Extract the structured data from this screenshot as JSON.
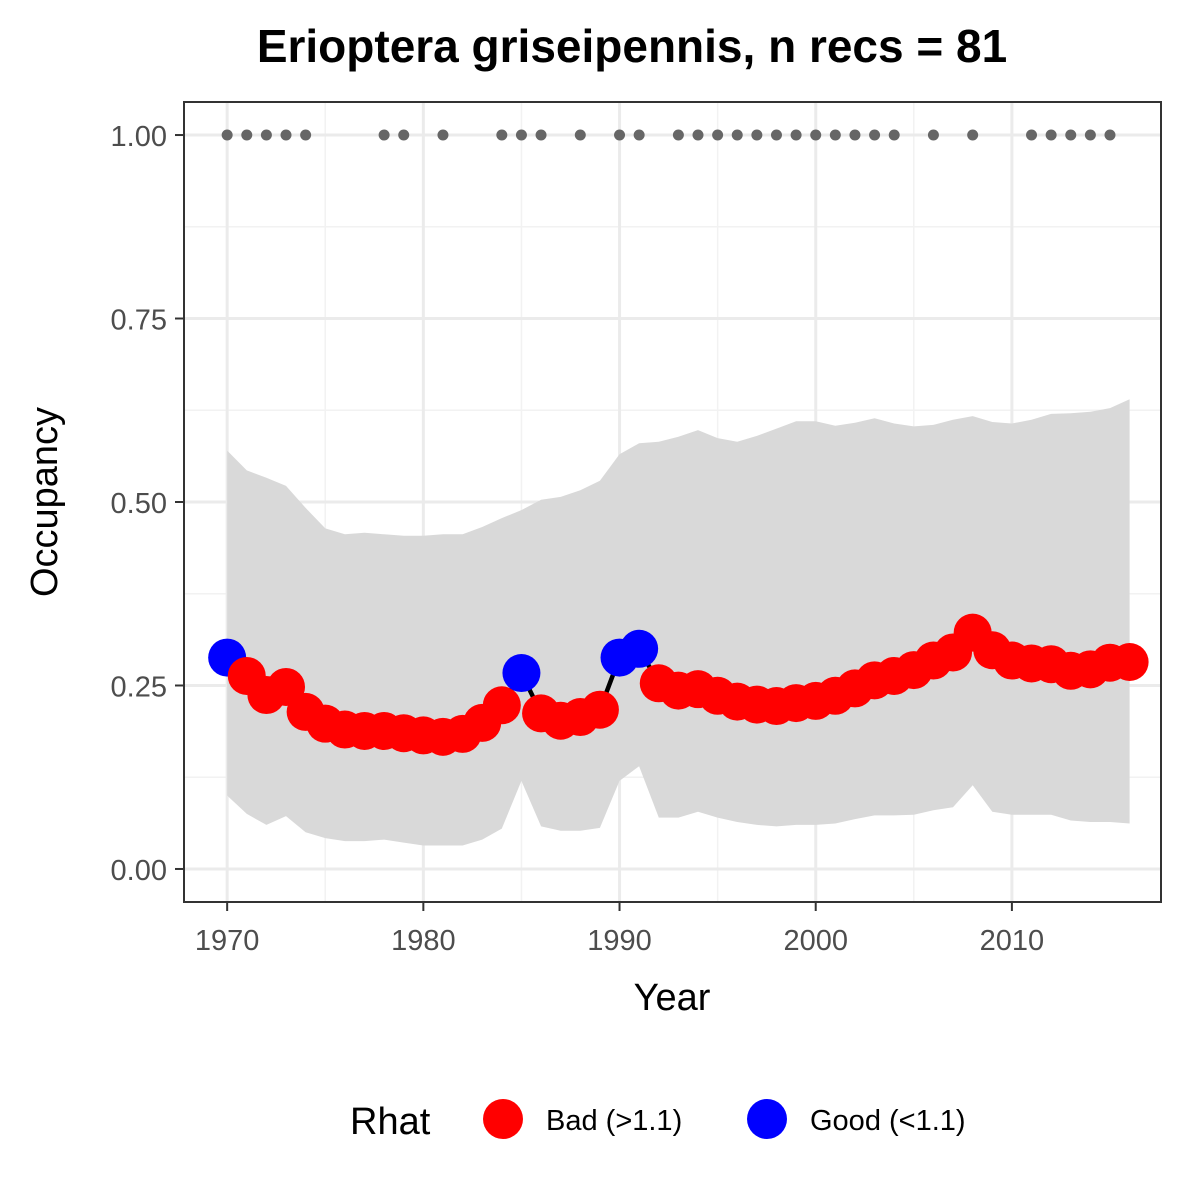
{
  "chart_data": {
    "type": "line",
    "title": "Erioptera griseipennis, n recs = 81",
    "xlabel": "Year",
    "ylabel": "Occupancy",
    "xlim": [
      1967.8,
      2017.6
    ],
    "ylim": [
      -0.045,
      1.045
    ],
    "x_ticks": [
      1970,
      1980,
      1990,
      2000,
      2010
    ],
    "x_tick_labels": [
      "1970",
      "1980",
      "1990",
      "2000",
      "2010"
    ],
    "y_ticks": [
      0,
      0.25,
      0.5,
      0.75,
      1.0
    ],
    "y_tick_labels": [
      "0.00",
      "0.25",
      "0.50",
      "0.75",
      "1.00"
    ],
    "grid": true,
    "legend_position": "bottom",
    "legend_title": "Rhat",
    "colors": {
      "bad": "#ff0000",
      "good": "#0000ff",
      "ribbon": "#d9d9d9",
      "line": "#000000",
      "records": "#666666"
    },
    "series": [
      {
        "years": [
          1970,
          1971,
          1972,
          1973,
          1974,
          1975,
          1976,
          1977,
          1978,
          1979,
          1980,
          1981,
          1982,
          1983,
          1984,
          1985,
          1986,
          1987,
          1988,
          1989,
          1990,
          1991,
          1992,
          1993,
          1994,
          1995,
          1996,
          1997,
          1998,
          1999,
          2000,
          2001,
          2002,
          2003,
          2004,
          2005,
          2006,
          2007,
          2008,
          2009,
          2010,
          2011,
          2012,
          2013,
          2014,
          2015,
          2016
        ],
        "occupancy": [
          0.288,
          0.263,
          0.237,
          0.248,
          0.214,
          0.198,
          0.19,
          0.188,
          0.188,
          0.185,
          0.182,
          0.18,
          0.184,
          0.199,
          0.223,
          0.267,
          0.212,
          0.202,
          0.207,
          0.217,
          0.288,
          0.3,
          0.253,
          0.243,
          0.245,
          0.236,
          0.228,
          0.224,
          0.222,
          0.226,
          0.229,
          0.236,
          0.246,
          0.257,
          0.263,
          0.271,
          0.284,
          0.295,
          0.322,
          0.298,
          0.284,
          0.28,
          0.279,
          0.27,
          0.272,
          0.281,
          0.282
        ],
        "lower": [
          0.1,
          0.075,
          0.06,
          0.072,
          0.05,
          0.042,
          0.038,
          0.038,
          0.04,
          0.036,
          0.032,
          0.032,
          0.032,
          0.04,
          0.055,
          0.12,
          0.058,
          0.052,
          0.052,
          0.056,
          0.12,
          0.14,
          0.07,
          0.07,
          0.078,
          0.07,
          0.064,
          0.06,
          0.058,
          0.06,
          0.06,
          0.062,
          0.068,
          0.073,
          0.073,
          0.074,
          0.08,
          0.084,
          0.114,
          0.078,
          0.074,
          0.074,
          0.074,
          0.066,
          0.064,
          0.064,
          0.062
        ],
        "upper": [
          0.57,
          0.543,
          0.533,
          0.522,
          0.492,
          0.464,
          0.456,
          0.458,
          0.456,
          0.454,
          0.454,
          0.456,
          0.456,
          0.466,
          0.478,
          0.489,
          0.503,
          0.507,
          0.516,
          0.529,
          0.565,
          0.58,
          0.582,
          0.589,
          0.598,
          0.587,
          0.582,
          0.59,
          0.6,
          0.61,
          0.61,
          0.604,
          0.608,
          0.614,
          0.607,
          0.603,
          0.605,
          0.612,
          0.617,
          0.609,
          0.607,
          0.612,
          0.62,
          0.621,
          0.623,
          0.628,
          0.64
        ],
        "rhat": [
          "Good",
          "Bad",
          "Bad",
          "Bad",
          "Bad",
          "Bad",
          "Bad",
          "Bad",
          "Bad",
          "Bad",
          "Bad",
          "Bad",
          "Bad",
          "Bad",
          "Bad",
          "Good",
          "Bad",
          "Bad",
          "Bad",
          "Bad",
          "Good",
          "Good",
          "Bad",
          "Bad",
          "Bad",
          "Bad",
          "Bad",
          "Bad",
          "Bad",
          "Bad",
          "Bad",
          "Bad",
          "Bad",
          "Bad",
          "Bad",
          "Bad",
          "Bad",
          "Bad",
          "Bad",
          "Bad",
          "Bad",
          "Bad",
          "Bad",
          "Bad",
          "Bad",
          "Bad",
          "Bad"
        ]
      }
    ],
    "record_years": [
      1970,
      1971,
      1972,
      1973,
      1974,
      1978,
      1979,
      1981,
      1984,
      1985,
      1986,
      1988,
      1990,
      1991,
      1993,
      1994,
      1995,
      1996,
      1997,
      1998,
      1999,
      2000,
      2001,
      2002,
      2003,
      2004,
      2006,
      2008,
      2011,
      2012,
      2013,
      2014,
      2015
    ],
    "record_value": 1.0,
    "legend": [
      {
        "key": "bad",
        "label": "Bad (>1.1)"
      },
      {
        "key": "good",
        "label": "Good (<1.1)"
      }
    ]
  }
}
